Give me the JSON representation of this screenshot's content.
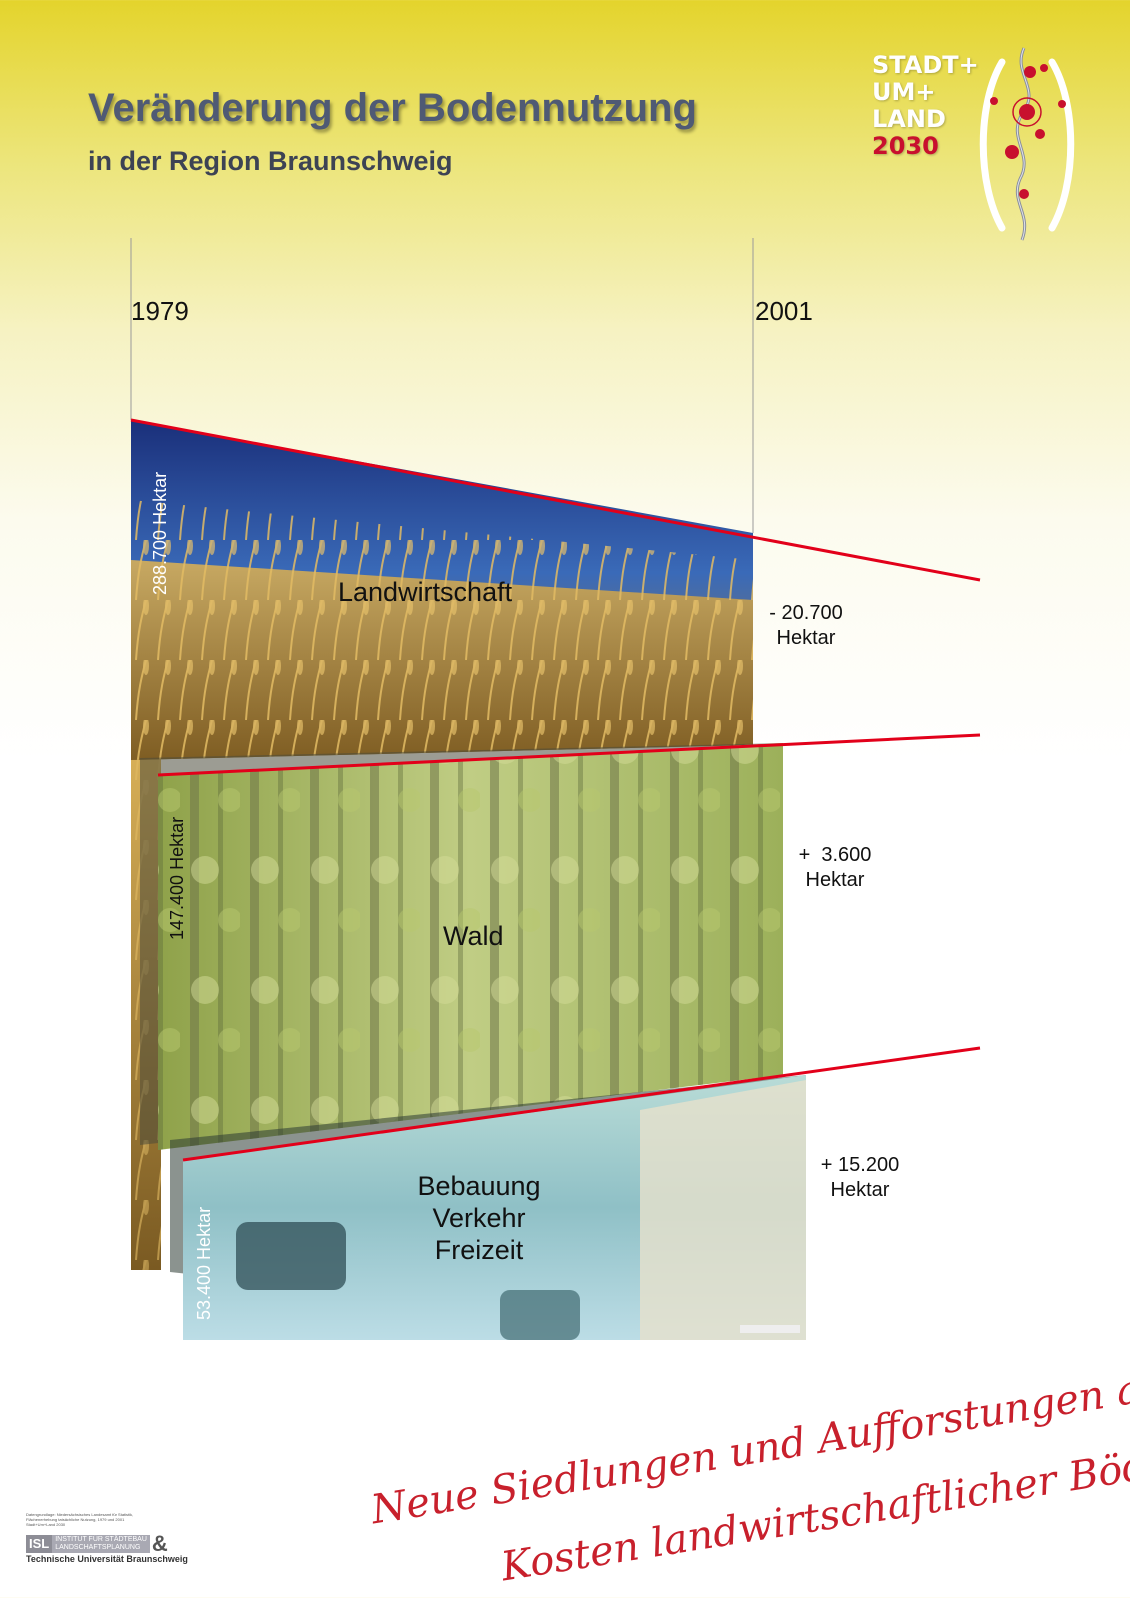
{
  "header": {
    "title": "Veränderung der Bodennutzung",
    "subtitle": "in der Region Braunschweig"
  },
  "logo": {
    "line1": "STADT+",
    "line2": "UM+",
    "line3": "LAND",
    "line4": "2030"
  },
  "diagram": {
    "year_start": "1979",
    "year_end": "2001",
    "categories": [
      {
        "label": "Landwirtschaft",
        "area_1979": "288.700 Hektar",
        "change_value": "- 20.700",
        "change_unit": "Hektar"
      },
      {
        "label": "Wald",
        "area_1979": "147.400 Hektar",
        "change_value": "+  3.600",
        "change_unit": "Hektar"
      },
      {
        "label_line1": "Bebauung",
        "label_line2": "Verkehr",
        "label_line3": "Freizeit",
        "area_1979": "53.400 Hektar",
        "change_value": "+ 15.200",
        "change_unit": "Hektar"
      }
    ],
    "colors": {
      "trend_line": "#e2001a",
      "sky": "#1e3f8c",
      "wheat": "#c8a046",
      "forest": "#9fb35a",
      "town": "#8fc4c8"
    }
  },
  "handwriting": {
    "line1": "Neue Siedlungen und Aufforstungen auf",
    "line2": "Kosten landwirtschaftlicher Böden"
  },
  "credit": {
    "source_line1": "Datengrundlage: Niedersächsisches Landesamt für Statistik,",
    "source_line2": "Flächenerhebung tatsächliche Nutzung, 1979 und 2001",
    "source_line3": "Stadt+Um+Land 2030",
    "isl": "ISL",
    "institute_line1": "INSTITUT FÜR STÄDTEBAU",
    "institute_line2": "LANDSCHAFTSPLANUNG",
    "ampersand": "&",
    "university": "Technische Universität Braunschweig"
  }
}
